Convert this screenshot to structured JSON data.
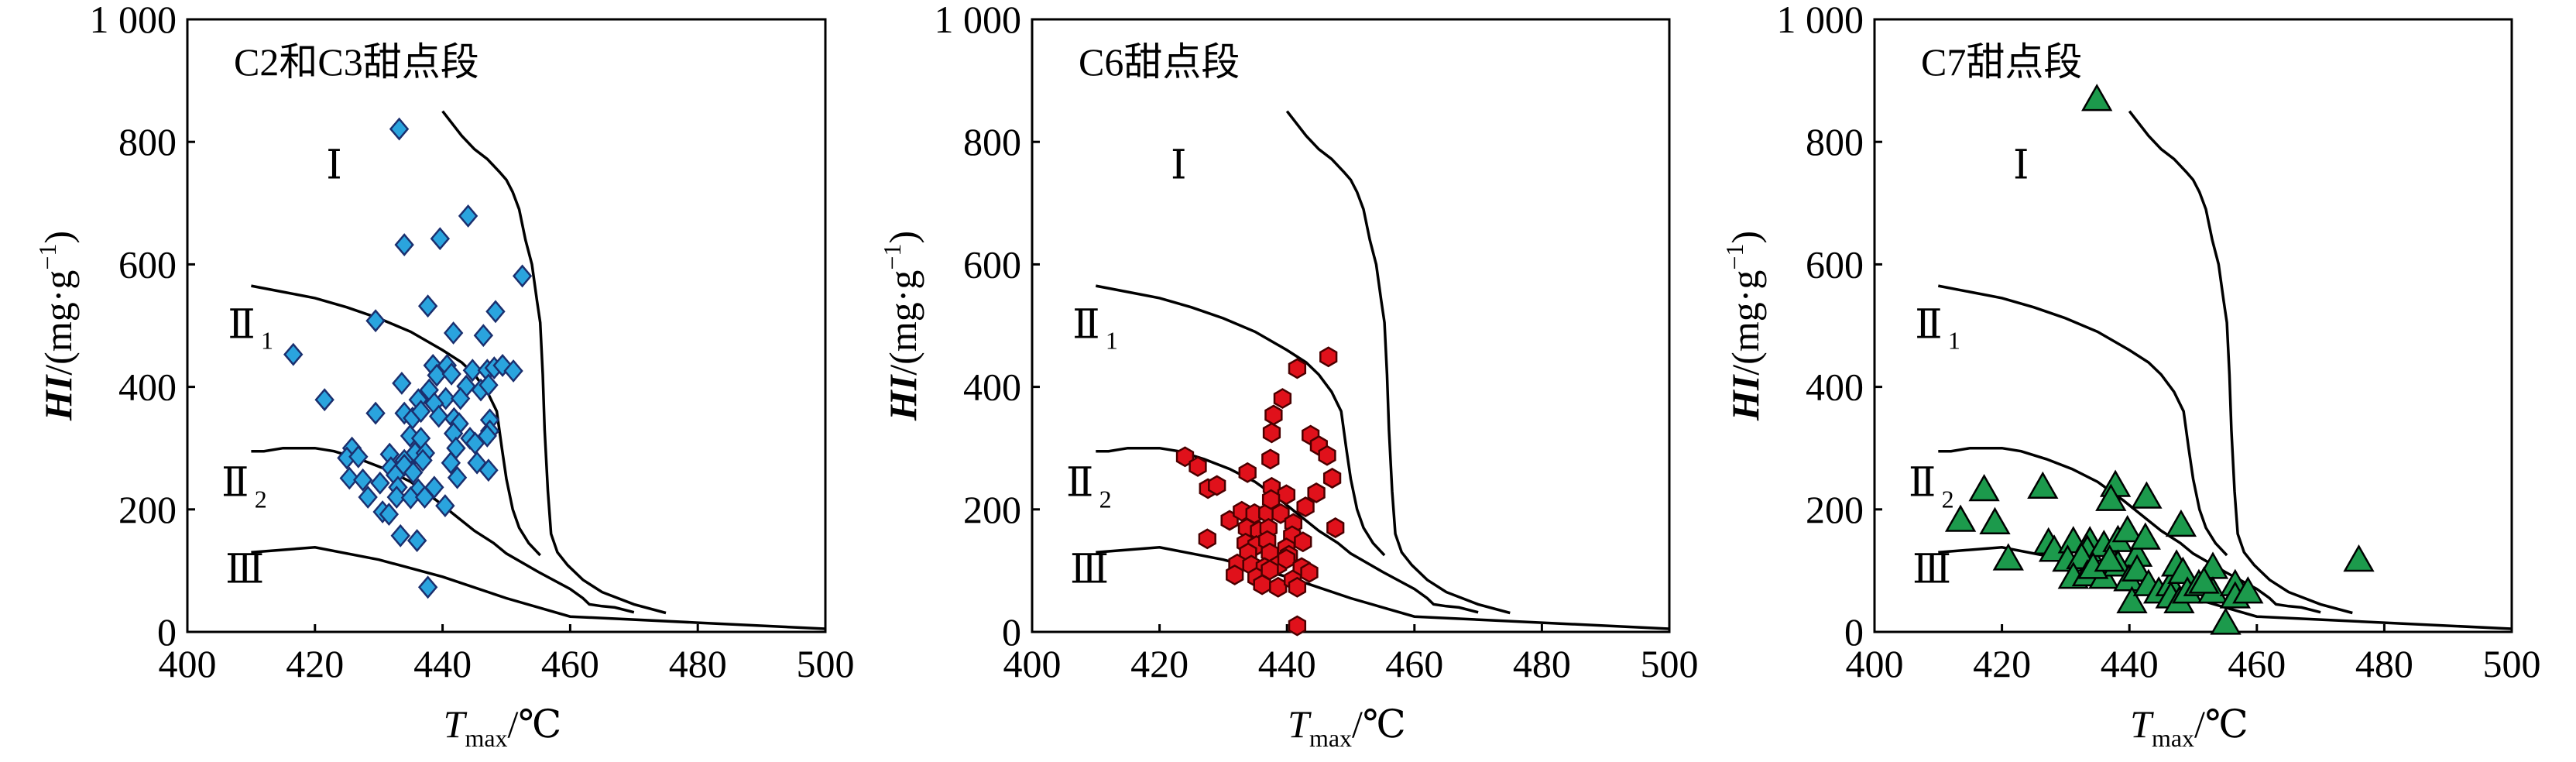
{
  "classification_curves": {
    "labels": {
      "I": "Ⅰ",
      "II1": "Ⅱ",
      "II1_sub": "1",
      "II2": "Ⅱ",
      "II2_sub": "2",
      "III": "Ⅲ"
    },
    "I": [
      [
        440,
        850
      ],
      [
        443,
        810
      ],
      [
        445,
        788
      ],
      [
        447,
        772
      ],
      [
        449,
        750
      ],
      [
        450,
        738
      ],
      [
        451,
        718
      ],
      [
        452,
        690
      ],
      [
        453,
        640
      ],
      [
        454,
        600
      ],
      [
        454.8,
        540
      ],
      [
        455.3,
        505
      ],
      [
        455.7,
        420
      ],
      [
        456,
        330
      ],
      [
        456.5,
        230
      ],
      [
        457,
        160
      ],
      [
        458,
        130
      ],
      [
        459.6,
        109
      ],
      [
        462,
        85
      ],
      [
        465,
        65
      ],
      [
        470,
        45
      ],
      [
        475,
        31
      ]
    ],
    "II1": [
      [
        410,
        565
      ],
      [
        415,
        555
      ],
      [
        420,
        545
      ],
      [
        425,
        530
      ],
      [
        430,
        512
      ],
      [
        435,
        490
      ],
      [
        440,
        460
      ],
      [
        443,
        440
      ],
      [
        445,
        420
      ],
      [
        447,
        392
      ],
      [
        448.5,
        360
      ],
      [
        449.3,
        300
      ],
      [
        450,
        250
      ],
      [
        451,
        200
      ],
      [
        452,
        170
      ],
      [
        453.5,
        145
      ],
      [
        455.3,
        125
      ]
    ],
    "II2": [
      [
        410,
        295
      ],
      [
        412,
        295
      ],
      [
        415,
        300
      ],
      [
        420,
        300
      ],
      [
        423,
        295
      ],
      [
        427,
        282
      ],
      [
        431,
        266
      ],
      [
        435,
        245
      ],
      [
        439,
        215
      ],
      [
        442,
        190
      ],
      [
        445,
        165
      ],
      [
        448,
        145
      ],
      [
        450,
        128
      ],
      [
        455,
        98
      ],
      [
        460,
        70
      ],
      [
        462,
        55
      ],
      [
        463,
        45
      ],
      [
        465,
        42
      ],
      [
        467,
        40
      ],
      [
        470,
        32
      ]
    ],
    "III": [
      [
        410,
        130
      ],
      [
        420,
        138
      ],
      [
        430,
        118
      ],
      [
        440,
        90
      ],
      [
        450,
        55
      ],
      [
        460,
        25
      ],
      [
        480,
        15
      ],
      [
        500,
        5
      ]
    ]
  },
  "chart_data": [
    {
      "type": "scatter",
      "title": "C2和C3甜点段",
      "xlabel": "T",
      "xlabel_sub": "max",
      "xlabel_unit": "/℃",
      "ylabel": "HI",
      "ylabel_unit": "/(mg·g",
      "ylabel_sup": "−1",
      "ylabel_close": ")",
      "xlim": [
        400,
        500
      ],
      "ylim": [
        0,
        1000
      ],
      "xticks": [
        "400",
        "420",
        "440",
        "460",
        "480",
        "500"
      ],
      "yticks": [
        "0",
        "200",
        "400",
        "600",
        "800",
        "1 000"
      ],
      "marker": "diamond",
      "fill": "#2aa4de",
      "stroke": "#1b2f6e",
      "points": [
        [
          433.2,
          821
        ],
        [
          444.0,
          679
        ],
        [
          434.0,
          632
        ],
        [
          439.6,
          642
        ],
        [
          452.5,
          581
        ],
        [
          437.7,
          532
        ],
        [
          448.3,
          523
        ],
        [
          429.5,
          508
        ],
        [
          441.7,
          488
        ],
        [
          446.4,
          484
        ],
        [
          416.6,
          453
        ],
        [
          421.5,
          379
        ],
        [
          433.6,
          406
        ],
        [
          429.5,
          357
        ],
        [
          438.5,
          435
        ],
        [
          440.7,
          435
        ],
        [
          439.1,
          419
        ],
        [
          441.4,
          421
        ],
        [
          444.7,
          427
        ],
        [
          447,
          427
        ],
        [
          448.1,
          431
        ],
        [
          449.4,
          435
        ],
        [
          451.1,
          426
        ],
        [
          443.7,
          401
        ],
        [
          446,
          395
        ],
        [
          447.2,
          403
        ],
        [
          437.9,
          395
        ],
        [
          436.2,
          379
        ],
        [
          440.5,
          381
        ],
        [
          442.8,
          381
        ],
        [
          438.7,
          373
        ],
        [
          439.4,
          352
        ],
        [
          434,
          357
        ],
        [
          435.3,
          349
        ],
        [
          436.6,
          360
        ],
        [
          441.8,
          348
        ],
        [
          442.6,
          340
        ],
        [
          447.4,
          346
        ],
        [
          447.4,
          328
        ],
        [
          447,
          320
        ],
        [
          441.7,
          324
        ],
        [
          442.1,
          300
        ],
        [
          444.3,
          316
        ],
        [
          445.1,
          308
        ],
        [
          434.9,
          320
        ],
        [
          436.6,
          316
        ],
        [
          425.8,
          300
        ],
        [
          425,
          284
        ],
        [
          426.8,
          286
        ],
        [
          431.7,
          290
        ],
        [
          435.7,
          292
        ],
        [
          437.3,
          292
        ],
        [
          434,
          280
        ],
        [
          436.9,
          280
        ],
        [
          441.3,
          276
        ],
        [
          445.4,
          276
        ],
        [
          447.2,
          264
        ],
        [
          431.9,
          268
        ],
        [
          434,
          272
        ],
        [
          435.4,
          260
        ],
        [
          425.4,
          251
        ],
        [
          427.5,
          248
        ],
        [
          432.6,
          256
        ],
        [
          430.2,
          243
        ],
        [
          442.3,
          252
        ],
        [
          433,
          236
        ],
        [
          436.2,
          232
        ],
        [
          438.7,
          236
        ],
        [
          428.3,
          220
        ],
        [
          432.8,
          220
        ],
        [
          435,
          219
        ],
        [
          437.2,
          220
        ],
        [
          440.4,
          206
        ],
        [
          430.6,
          196
        ],
        [
          431.6,
          192
        ],
        [
          433.4,
          157
        ],
        [
          436,
          149
        ],
        [
          437.7,
          73
        ]
      ]
    },
    {
      "type": "scatter",
      "title": "C6甜点段",
      "xlabel": "T",
      "xlabel_sub": "max",
      "xlabel_unit": "/℃",
      "ylabel": "HI",
      "ylabel_unit": "/(mg·g",
      "ylabel_sup": "−1",
      "ylabel_close": ")",
      "xlim": [
        400,
        500
      ],
      "ylim": [
        0,
        1000
      ],
      "xticks": [
        "400",
        "420",
        "440",
        "460",
        "480",
        "500"
      ],
      "yticks": [
        "0",
        "200",
        "400",
        "600",
        "800",
        "1 000"
      ],
      "marker": "hexagon",
      "fill": "#e0111b",
      "stroke": "#4a0000",
      "points": [
        [
          446.5,
          449
        ],
        [
          441.6,
          430
        ],
        [
          439.3,
          381
        ],
        [
          437.9,
          354
        ],
        [
          437.6,
          325
        ],
        [
          443.7,
          321
        ],
        [
          445,
          304
        ],
        [
          446.3,
          288
        ],
        [
          447.1,
          251
        ],
        [
          444.6,
          227
        ],
        [
          437.4,
          282
        ],
        [
          424,
          286
        ],
        [
          426,
          270
        ],
        [
          427.6,
          234
        ],
        [
          429,
          239
        ],
        [
          433.8,
          260
        ],
        [
          437.6,
          236
        ],
        [
          439.9,
          224
        ],
        [
          442.9,
          204
        ],
        [
          447.6,
          170
        ],
        [
          427.5,
          152
        ],
        [
          431,
          182
        ],
        [
          432.9,
          197
        ],
        [
          434.9,
          193
        ],
        [
          436.9,
          194
        ],
        [
          439,
          193
        ],
        [
          437.5,
          216
        ],
        [
          441,
          177
        ],
        [
          433.7,
          169
        ],
        [
          435.6,
          165
        ],
        [
          437.1,
          169
        ],
        [
          440.8,
          157
        ],
        [
          442.5,
          147
        ],
        [
          433.5,
          145
        ],
        [
          435.2,
          141
        ],
        [
          436.9,
          149
        ],
        [
          439.9,
          137
        ],
        [
          433.9,
          129
        ],
        [
          437.3,
          129
        ],
        [
          440.3,
          125
        ],
        [
          432.2,
          111
        ],
        [
          434.4,
          109
        ],
        [
          436.5,
          105
        ],
        [
          438.6,
          109
        ],
        [
          439.9,
          119
        ],
        [
          442.3,
          105
        ],
        [
          431.8,
          93
        ],
        [
          435.2,
          89
        ],
        [
          437.3,
          101
        ],
        [
          443.5,
          97
        ],
        [
          436.1,
          77
        ],
        [
          438.6,
          73
        ],
        [
          440.9,
          85
        ],
        [
          441.6,
          73
        ],
        [
          441.6,
          10
        ]
      ]
    },
    {
      "type": "scatter",
      "title": "C7甜点段",
      "xlabel": "T",
      "xlabel_sub": "max",
      "xlabel_unit": "/℃",
      "ylabel": "HI",
      "ylabel_unit": "/(mg·g",
      "ylabel_sup": "−1",
      "ylabel_close": ")",
      "xlim": [
        400,
        500
      ],
      "ylim": [
        0,
        1000
      ],
      "xticks": [
        "400",
        "420",
        "440",
        "460",
        "480",
        "500"
      ],
      "yticks": [
        "0",
        "200",
        "400",
        "600",
        "800",
        "1 000"
      ],
      "marker": "triangle",
      "fill": "#1c9a4c",
      "stroke": "#000000",
      "points": [
        [
          434.9,
          869
        ],
        [
          476,
          117
        ],
        [
          417.2,
          232
        ],
        [
          426.4,
          236
        ],
        [
          437.8,
          239
        ],
        [
          437.1,
          216
        ],
        [
          442.7,
          220
        ],
        [
          413.5,
          182
        ],
        [
          418.9,
          178
        ],
        [
          448.1,
          174
        ],
        [
          421,
          119
        ],
        [
          427.3,
          145
        ],
        [
          428.2,
          133
        ],
        [
          431.2,
          147
        ],
        [
          433.8,
          147
        ],
        [
          433.4,
          133
        ],
        [
          430.3,
          117
        ],
        [
          432.5,
          121
        ],
        [
          436,
          141
        ],
        [
          438.2,
          149
        ],
        [
          439.7,
          165
        ],
        [
          441.2,
          125
        ],
        [
          442.5,
          153
        ],
        [
          431.2,
          89
        ],
        [
          433.4,
          93
        ],
        [
          436,
          89
        ],
        [
          438.2,
          109
        ],
        [
          439.9,
          85
        ],
        [
          441.2,
          101
        ],
        [
          440.4,
          49
        ],
        [
          443,
          77
        ],
        [
          444.6,
          65
        ],
        [
          446.5,
          77
        ],
        [
          447.4,
          109
        ],
        [
          448.4,
          97
        ],
        [
          446.5,
          57
        ],
        [
          447.8,
          49
        ],
        [
          449.1,
          65
        ],
        [
          450.9,
          77
        ],
        [
          453.1,
          105
        ],
        [
          453.1,
          65
        ],
        [
          451.7,
          81
        ],
        [
          456.6,
          77
        ],
        [
          456.6,
          57
        ],
        [
          458.6,
          65
        ],
        [
          455.1,
          14
        ],
        [
          434.3,
          105
        ],
        [
          436.9,
          117
        ]
      ]
    }
  ]
}
